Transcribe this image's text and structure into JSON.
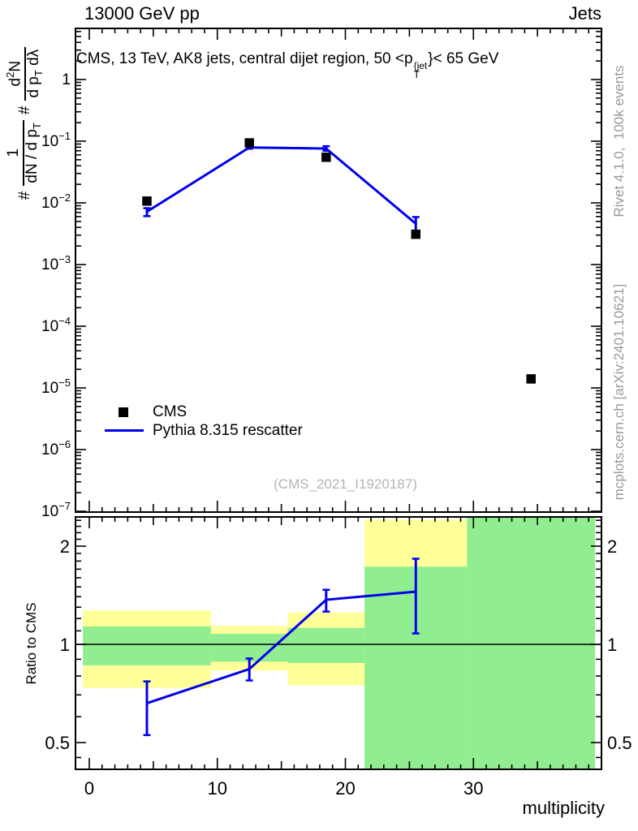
{
  "header": {
    "title_left": "13000 GeV pp",
    "title_right": "Jets",
    "subtitle_html": "CMS, 13 TeV, AK8 jets, central dijet region, 50 &lt;p<span class='ss'><sup>{jet</sup><sub>T</sub></span>}&lt; 65 GeV"
  },
  "side_notes": {
    "right_top": "Rivet 4.1.0,  100k events",
    "right_bottom": "mcplots.cern.ch [arXiv:2401.10621]"
  },
  "watermark": "(CMS_2021_I1920187)",
  "legend": {
    "items": [
      {
        "label": "CMS",
        "marker": "filled-square",
        "color": "#000000"
      },
      {
        "label": "Pythia 8.315 rescatter",
        "marker": "line",
        "color": "#0000ee"
      }
    ]
  },
  "axis_titles": {
    "y_top_hash": "#",
    "y_top_frac1_num": "1",
    "y_top_frac1_den_html": "dN / d p<sub>T</sub>",
    "y_top_frac2_num_html": "d<sup>2</sup>N",
    "y_top_frac2_den_html": "d p<sub>T</sub> dλ",
    "y_bottom": "Ratio to CMS",
    "x_bottom": "multiplicity"
  },
  "colors": {
    "mc_blue": "#0000ee",
    "band_yellow": "#ffff99",
    "band_green": "#90ee90",
    "axis_black": "#000000",
    "note_gray": "#999999",
    "watermark_gray": "#b5b5b5"
  },
  "chart_data": {
    "type": "scatter+line two-panel ratio plot",
    "title": "CMS, 13 TeV, AK8 jets, central dijet region, 50 <pT{jet}< 65 GeV",
    "xlabel": "multiplicity",
    "x_range": [
      -1.08,
      40
    ],
    "x_major_ticks": [
      0,
      10,
      20,
      30,
      40
    ],
    "top_panel": {
      "y_scale": "log",
      "y_range": [
        1e-07,
        6.7
      ],
      "y_major_tick_exponents": [
        0,
        -1,
        -2,
        -3,
        -4,
        -5,
        -6,
        -7
      ],
      "series": [
        {
          "name": "CMS",
          "type": "scatter",
          "marker": "filled-square",
          "color": "#000000",
          "points_xy": [
            [
              4.5,
              0.0107
            ],
            [
              12.5,
              0.094
            ],
            [
              18.5,
              0.055
            ],
            [
              25.5,
              0.0031
            ],
            [
              34.5,
              1.4e-05
            ]
          ]
        },
        {
          "name": "Pythia 8.315 rescatter",
          "type": "line-with-errorbars",
          "color": "#0000ee",
          "points_x_y_ylo_yhi": [
            [
              4.5,
              0.0072,
              0.0061,
              0.0082
            ],
            [
              12.5,
              0.079,
              0.0755,
              0.0845
            ],
            [
              18.5,
              0.076,
              0.07,
              0.083
            ],
            [
              25.5,
              0.0046,
              0.0033,
              0.0059
            ]
          ]
        }
      ]
    },
    "ratio_panel": {
      "ylabel": "Ratio to CMS",
      "y_scale": "log",
      "y_range": [
        0.417,
        2.47
      ],
      "y_major_ticks": [
        0.5,
        1,
        2
      ],
      "unity_line": 1.0,
      "bands": [
        {
          "x_edges": [
            -0.5,
            9.5
          ],
          "yellow": [
            0.735,
            1.27
          ],
          "green": [
            0.862,
            1.134
          ]
        },
        {
          "x_edges": [
            9.5,
            15.5
          ],
          "yellow": [
            0.831,
            1.139
          ],
          "green": [
            0.885,
            1.077
          ]
        },
        {
          "x_edges": [
            15.5,
            21.5
          ],
          "yellow": [
            0.749,
            1.252
          ],
          "green": [
            0.877,
            1.123
          ]
        },
        {
          "x_edges": [
            21.5,
            29.5
          ],
          "yellow": [
            0.4,
            2.41
          ],
          "green": [
            0.4,
            1.73
          ]
        },
        {
          "x_edges": [
            29.5,
            39.5
          ],
          "yellow": null,
          "green": [
            0.4,
            2.6
          ]
        }
      ],
      "mc_ratio_points_x_y_ylo_yhi": [
        [
          4.5,
          0.66,
          0.527,
          0.77
        ],
        [
          12.5,
          0.84,
          0.775,
          0.905
        ],
        [
          18.5,
          1.37,
          1.26,
          1.47
        ],
        [
          25.5,
          1.45,
          1.08,
          1.83
        ]
      ]
    }
  }
}
